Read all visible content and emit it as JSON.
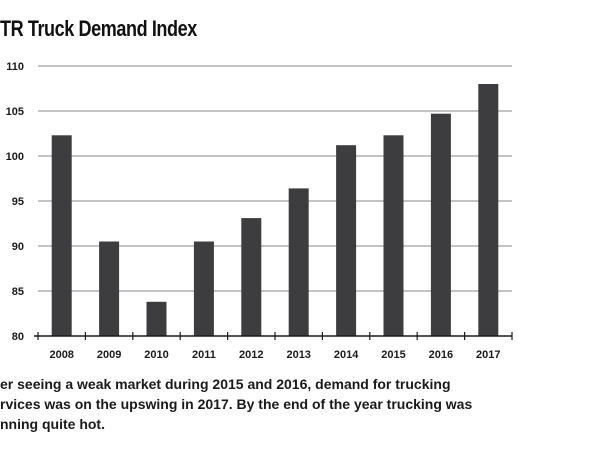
{
  "chart_data": {
    "type": "bar",
    "title": "TR Truck Demand Index",
    "categories": [
      "2008",
      "2009",
      "2010",
      "2011",
      "2012",
      "2013",
      "2014",
      "2015",
      "2016",
      "2017"
    ],
    "values": [
      102.3,
      90.5,
      83.8,
      90.5,
      93.1,
      96.4,
      101.2,
      102.3,
      104.7,
      108.0
    ],
    "xlabel": "",
    "ylabel": "",
    "ylim": [
      80,
      110
    ],
    "yticks": [
      "80",
      "85",
      "90",
      "95",
      "100",
      "105",
      "110"
    ],
    "grid": true,
    "colors": {
      "bar": "#3d3d3f",
      "grid": "#8a8a8a",
      "axis": "#1a1a1a"
    }
  },
  "caption": [
    "er seeing a weak market during 2015 and 2016, demand for trucking",
    "rvices was on the upswing in 2017. By the end of the year trucking was",
    "nning quite hot."
  ]
}
